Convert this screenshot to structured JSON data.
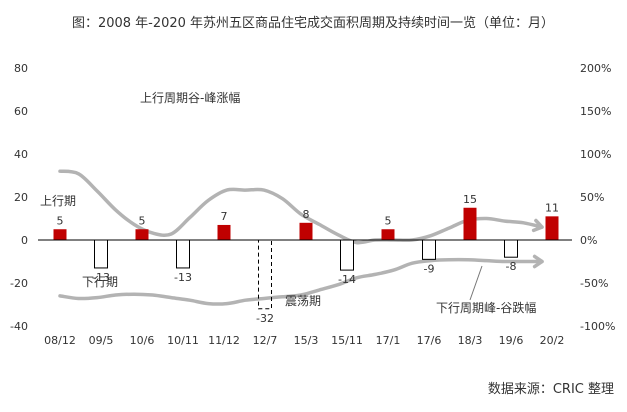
{
  "chart_data": {
    "type": "bar",
    "title": "图：2008 年-2020 年苏州五区商品住宅成交面积周期及持续时间一览（单位：月）",
    "source": "数据来源：CRIC 整理",
    "categories": [
      "08/12",
      "09/5",
      "10/6",
      "10/11",
      "11/12",
      "12/7",
      "15/3",
      "15/11",
      "17/1",
      "17/6",
      "18/3",
      "19/6",
      "20/2"
    ],
    "values": [
      5,
      -13,
      5,
      -13,
      7,
      -32,
      8,
      -14,
      5,
      -9,
      15,
      -8,
      11
    ],
    "bar_styles": [
      "up",
      "down",
      "up",
      "down",
      "up",
      "shock",
      "up",
      "down",
      "up",
      "down",
      "up",
      "down",
      "up"
    ],
    "value_labels": [
      "5",
      "-13",
      "5",
      "-13",
      "7",
      "-32",
      "8",
      "-14",
      "5",
      "-9",
      "15",
      "-8",
      "11"
    ],
    "y_left": {
      "min": -40,
      "max": 80,
      "ticks": [
        "80",
        "60",
        "40",
        "20",
        "0",
        "-20",
        "-40"
      ]
    },
    "y_right": {
      "min": -100,
      "max": 200,
      "ticks": [
        "200%",
        "150%",
        "100%",
        "50%",
        "0%",
        "-50%",
        "-100%"
      ]
    },
    "annotations": {
      "up_period": "上行期",
      "down_period": "下行期",
      "shock_period": "震荡期",
      "upper_curve": "上行周期谷-峰涨幅",
      "lower_curve": "下行周期峰-谷跌幅"
    },
    "upper_curve_pct": [
      80,
      77,
      57,
      35,
      18,
      8,
      7,
      26,
      46,
      58,
      58,
      58,
      48,
      30,
      18,
      6,
      -3,
      0,
      0,
      0,
      5,
      14,
      23,
      25,
      22,
      20,
      15
    ],
    "lower_curve_pct": [
      -65,
      -68,
      -67,
      -64,
      -63,
      -64,
      -67,
      -70,
      -74,
      -74,
      -70,
      -68,
      -66,
      -64,
      -58,
      -52,
      -44,
      -40,
      -35,
      -27,
      -24,
      -23,
      -23,
      -24,
      -25,
      -25,
      -25
    ],
    "colors": {
      "up_bar": "#c00000",
      "curve": "#b3b3b3",
      "axis": "#000000",
      "text": "#333333"
    }
  }
}
